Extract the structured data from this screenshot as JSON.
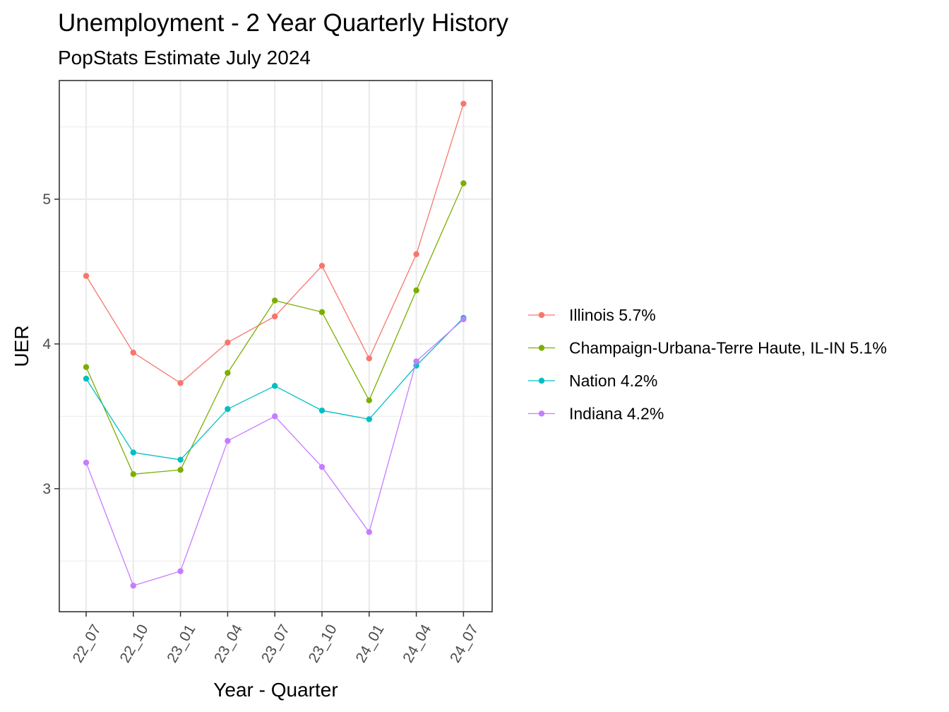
{
  "chart_data": {
    "type": "line",
    "title": "Unemployment - 2 Year Quarterly History",
    "subtitle": "PopStats Estimate July 2024",
    "xlabel": "Year - Quarter",
    "ylabel": "UER",
    "categories": [
      "22_07",
      "22_10",
      "23_01",
      "23_04",
      "23_07",
      "23_10",
      "24_01",
      "24_04",
      "24_07"
    ],
    "y_ticks": [
      "3",
      "4",
      "5"
    ],
    "ylim": [
      2.15,
      5.82
    ],
    "grid": true,
    "legend_position": "right",
    "series": [
      {
        "name": "Illinois 5.7%",
        "color": "#F8766D",
        "values": [
          4.47,
          3.94,
          3.73,
          4.01,
          4.19,
          4.54,
          3.9,
          4.62,
          5.66
        ]
      },
      {
        "name": "Champaign-Urbana-Terre Haute, IL-IN 5.1%",
        "color": "#7CAE00",
        "values": [
          3.84,
          3.1,
          3.13,
          3.8,
          4.3,
          4.22,
          3.61,
          4.37,
          5.11
        ]
      },
      {
        "name": "Nation 4.2%",
        "color": "#00BFC4",
        "values": [
          3.76,
          3.25,
          3.2,
          3.55,
          3.71,
          3.54,
          3.48,
          3.85,
          4.18
        ]
      },
      {
        "name": "Indiana 4.2%",
        "color": "#C77CFF",
        "values": [
          3.18,
          2.33,
          2.43,
          3.33,
          3.5,
          3.15,
          2.7,
          3.88,
          4.17
        ]
      }
    ]
  }
}
